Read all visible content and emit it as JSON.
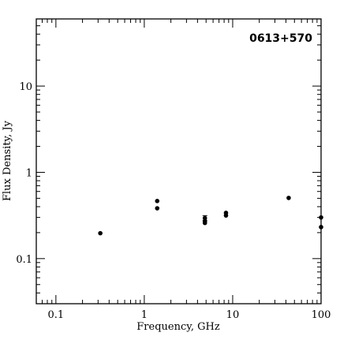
{
  "chart_data": {
    "type": "scatter",
    "title": "0613+570",
    "xlabel": "Frequency, GHz",
    "ylabel": "Flux Density, Jy",
    "xscale": "log",
    "yscale": "log",
    "xlim": [
      0.06,
      100
    ],
    "ylim": [
      0.03,
      60
    ],
    "xticks": [
      {
        "value": 0.1,
        "label": "0.1"
      },
      {
        "value": 1,
        "label": "1"
      },
      {
        "value": 10,
        "label": "10"
      },
      {
        "value": 100,
        "label": "100"
      }
    ],
    "yticks": [
      {
        "value": 0.1,
        "label": "0.1"
      },
      {
        "value": 1,
        "label": "1"
      },
      {
        "value": 10,
        "label": "10"
      }
    ],
    "points": [
      {
        "x": 0.318,
        "y": 0.197
      },
      {
        "x": 1.4,
        "y": 0.465
      },
      {
        "x": 1.4,
        "y": 0.383
      },
      {
        "x": 4.85,
        "y": 0.295,
        "err": 0.02
      },
      {
        "x": 4.85,
        "y": 0.273
      },
      {
        "x": 4.85,
        "y": 0.259
      },
      {
        "x": 8.4,
        "y": 0.339
      },
      {
        "x": 8.4,
        "y": 0.316
      },
      {
        "x": 43,
        "y": 0.505
      },
      {
        "x": 100,
        "y": 0.3
      },
      {
        "x": 100,
        "y": 0.232
      }
    ]
  }
}
